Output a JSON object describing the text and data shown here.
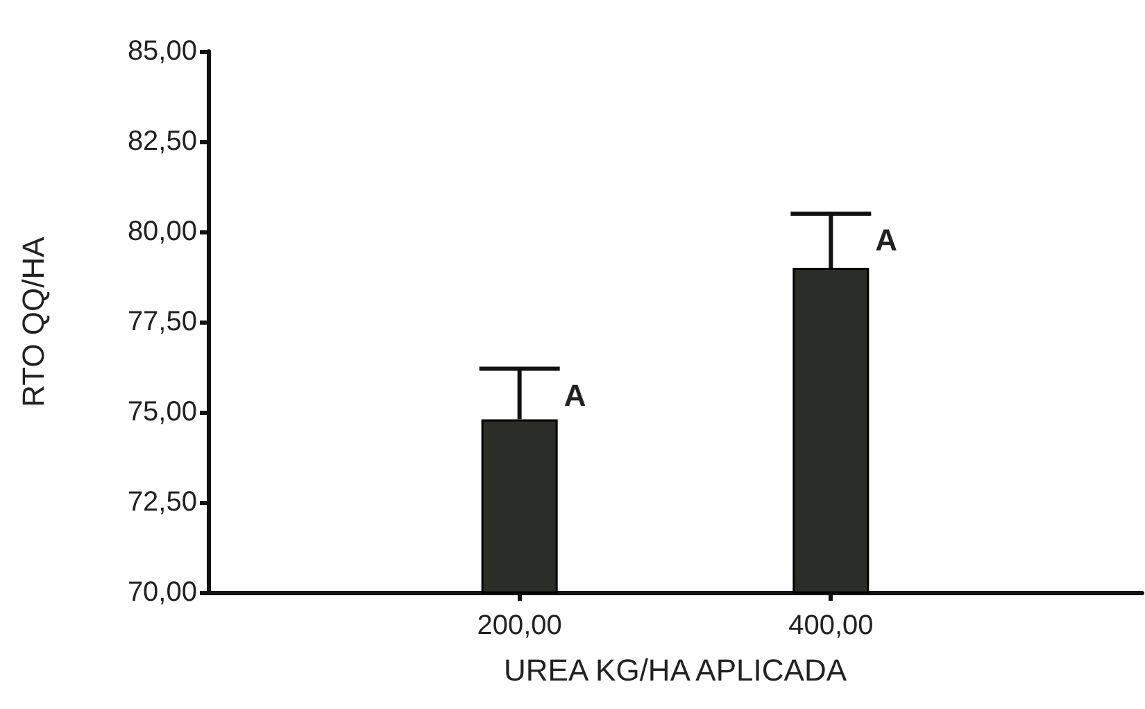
{
  "chart_data": {
    "type": "bar",
    "xlabel": "UREA KG/HA APLICADA",
    "ylabel": "RTO QQ/HA",
    "categories": [
      "200,00",
      "400,00"
    ],
    "values": [
      74.8,
      79.0
    ],
    "errors": [
      [
        74.8,
        76.2
      ],
      [
        79.0,
        80.5
      ]
    ],
    "color": "#2b2d27",
    "ylim": [
      70,
      85
    ],
    "yticks": [
      {
        "value": 70,
        "label": "70,00"
      },
      {
        "value": 72.5,
        "label": "72,50"
      },
      {
        "value": 75,
        "label": "75,00"
      },
      {
        "value": 77.5,
        "label": "77,50"
      },
      {
        "value": 80,
        "label": "80,00"
      },
      {
        "value": 82.5,
        "label": "82,50"
      },
      {
        "value": 85,
        "label": "85,00"
      }
    ],
    "annotations": [
      {
        "text": "A",
        "x": "200,00",
        "y": 76.2
      },
      {
        "text": "A",
        "x": "400,00",
        "y": 80.5
      }
    ],
    "grid": false
  }
}
